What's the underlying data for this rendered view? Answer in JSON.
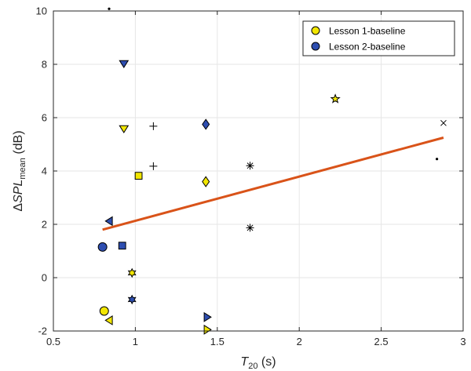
{
  "chart_data": {
    "type": "scatter",
    "xlabel": {
      "main": "T",
      "sub": "20",
      "unit": " (s)"
    },
    "ylabel": {
      "prefix": "Δ",
      "main": "SPL",
      "sub": "mean",
      "unit": " (dB)"
    },
    "xlim": [
      0.5,
      3
    ],
    "ylim": [
      -2,
      10
    ],
    "xticks": [
      0.5,
      1,
      1.5,
      2,
      2.5,
      3
    ],
    "yticks": [
      -2,
      0,
      2,
      4,
      6,
      8,
      10
    ],
    "xtick_labels": [
      "0.5",
      "1",
      "1.5",
      "2",
      "2.5",
      "3"
    ],
    "ytick_labels": [
      "-2",
      "0",
      "2",
      "4",
      "6",
      "8",
      "10"
    ],
    "grid": true,
    "legend_position": "top-right",
    "series": [
      {
        "name": "Lesson 1-baseline",
        "color": "#f2e600",
        "points": [
          {
            "x": 0.93,
            "y": 5.58,
            "marker": "triangle-down"
          },
          {
            "x": 1.02,
            "y": 3.82,
            "marker": "square"
          },
          {
            "x": 1.43,
            "y": 3.6,
            "marker": "diamond"
          },
          {
            "x": 0.98,
            "y": 0.18,
            "marker": "hexagram"
          },
          {
            "x": 0.81,
            "y": -1.25,
            "marker": "circle"
          },
          {
            "x": 0.84,
            "y": -1.6,
            "marker": "triangle-left"
          },
          {
            "x": 1.44,
            "y": -1.95,
            "marker": "triangle-right"
          },
          {
            "x": 2.22,
            "y": 6.7,
            "marker": "pentagram"
          }
        ]
      },
      {
        "name": "Lesson 2-baseline",
        "color": "#2e4eb0",
        "points": [
          {
            "x": 0.93,
            "y": 8.02,
            "marker": "triangle-down"
          },
          {
            "x": 1.43,
            "y": 5.75,
            "marker": "diamond"
          },
          {
            "x": 0.84,
            "y": 2.12,
            "marker": "triangle-left"
          },
          {
            "x": 0.8,
            "y": 1.15,
            "marker": "circle"
          },
          {
            "x": 0.92,
            "y": 1.2,
            "marker": "square"
          },
          {
            "x": 0.98,
            "y": -0.82,
            "marker": "hexagram"
          },
          {
            "x": 1.44,
            "y": -1.48,
            "marker": "triangle-right"
          }
        ]
      },
      {
        "color": "#000000",
        "points": [
          {
            "x": 1.11,
            "y": 5.68,
            "marker": "plus"
          },
          {
            "x": 1.11,
            "y": 4.18,
            "marker": "plus"
          },
          {
            "x": 1.7,
            "y": 4.2,
            "marker": "asterisk"
          },
          {
            "x": 1.7,
            "y": 1.87,
            "marker": "asterisk"
          },
          {
            "x": 2.88,
            "y": 5.8,
            "marker": "cross"
          },
          {
            "x": 2.84,
            "y": 4.45,
            "marker": "dot"
          },
          {
            "x": 0.84,
            "y": 10.08,
            "marker": "dot"
          }
        ]
      }
    ],
    "trend_line": {
      "color": "#d95319",
      "x": [
        0.8,
        2.88
      ],
      "y": [
        1.8,
        5.25
      ]
    }
  }
}
